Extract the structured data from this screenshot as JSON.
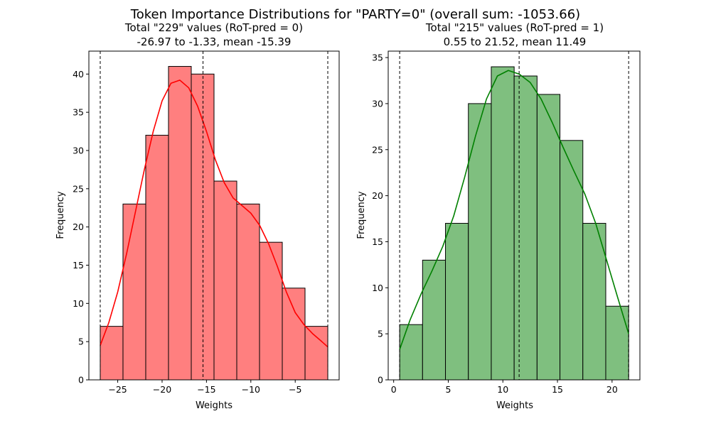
{
  "figure": {
    "suptitle": "Token Importance Distributions for \"PARTY=0\" (overall  sum: -1053.66)"
  },
  "chart_data": [
    {
      "type": "bar",
      "subtype": "histogram",
      "title_line1": "Total \"229\" values (RoT-pred = 0)",
      "title_line2": "-26.97 to -1.33, mean -15.39",
      "xlabel": "Weights",
      "ylabel": "Frequency",
      "xlim": [
        -28.25,
        -0.05
      ],
      "ylim": [
        0,
        43
      ],
      "xticks": [
        -25,
        -20,
        -15,
        -10,
        -5
      ],
      "xtick_labels": [
        "−25",
        "−20",
        "−15",
        "−10",
        "−5"
      ],
      "yticks": [
        0,
        5,
        10,
        15,
        20,
        25,
        30,
        35,
        40
      ],
      "bin_edges": [
        -26.97,
        -24.406,
        -21.842,
        -19.278,
        -16.714,
        -14.15,
        -11.586,
        -9.022,
        -6.458,
        -3.894,
        -1.33
      ],
      "counts": [
        7,
        23,
        32,
        41,
        40,
        26,
        23,
        18,
        12,
        7
      ],
      "fill_color": "#ff7f7f",
      "edge_color": "#000000",
      "kde_color": "#ff0000",
      "kde_x": [
        -26.97,
        -26,
        -25,
        -24,
        -23,
        -22,
        -21,
        -20,
        -19,
        -18,
        -17,
        -16,
        -15,
        -14,
        -13,
        -12,
        -11,
        -10,
        -9,
        -8,
        -7,
        -6,
        -5,
        -4,
        -3,
        -2,
        -1.33
      ],
      "kde_y": [
        4.5,
        7.5,
        11.5,
        16.5,
        22,
        27.5,
        32.5,
        36.5,
        38.8,
        39.2,
        38.2,
        35.8,
        32.5,
        28.8,
        25.8,
        23.8,
        22.8,
        21.8,
        20.2,
        17.8,
        14.8,
        11.5,
        8.8,
        7.2,
        6,
        5,
        4.3
      ],
      "vlines": [
        -26.97,
        -15.39,
        -1.33
      ],
      "grid": false,
      "legend": "none"
    },
    {
      "type": "bar",
      "subtype": "histogram",
      "title_line1": "Total \"215\" values (RoT-pred = 1)",
      "title_line2": "0.55 to 21.52, mean 11.49",
      "xlabel": "Weights",
      "ylabel": "Frequency",
      "xlim": [
        -0.5,
        22.55
      ],
      "ylim": [
        0,
        35.7
      ],
      "xticks": [
        0,
        5,
        10,
        15,
        20
      ],
      "xtick_labels": [
        "0",
        "5",
        "10",
        "15",
        "20"
      ],
      "yticks": [
        0,
        5,
        10,
        15,
        20,
        25,
        30,
        35
      ],
      "bin_edges": [
        0.55,
        2.647,
        4.744,
        6.841,
        8.938,
        11.035,
        13.132,
        15.229,
        17.326,
        19.423,
        21.52
      ],
      "counts": [
        6,
        13,
        17,
        30,
        34,
        33,
        31,
        26,
        17,
        8
      ],
      "fill_color": "#7fbf7f",
      "edge_color": "#000000",
      "kde_color": "#008000",
      "kde_x": [
        0.55,
        1.5,
        2.5,
        3.5,
        4.5,
        5.5,
        6.5,
        7.5,
        8.5,
        9.5,
        10.5,
        11.5,
        12.5,
        13.5,
        14.5,
        15.5,
        16.5,
        17.5,
        18.5,
        19.5,
        20.5,
        21.52
      ],
      "kde_y": [
        3.3,
        6.5,
        9.3,
        11.8,
        14.5,
        17.8,
        22,
        26.5,
        30.5,
        33,
        33.6,
        33.2,
        32.3,
        30.5,
        28,
        25.3,
        22.7,
        20.2,
        17,
        13,
        9,
        5
      ],
      "vlines": [
        0.55,
        11.49,
        21.52
      ],
      "grid": false,
      "legend": "none"
    }
  ]
}
